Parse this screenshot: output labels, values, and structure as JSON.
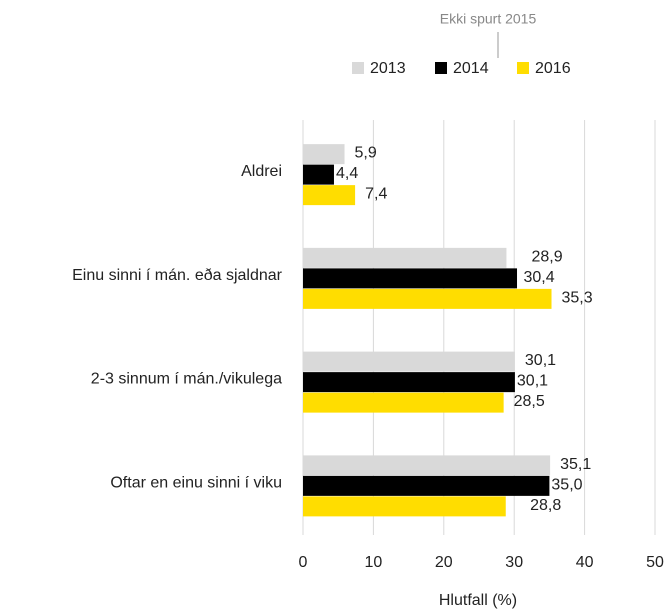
{
  "chart_data": {
    "type": "barh",
    "annotation": "Ekki spurt 2015",
    "xlabel": "Hlutfall (%)",
    "categories": [
      "Aldrei",
      "Einu sinni í mán. eða sjaldnar",
      "2-3 sinnum í mán./vikulega",
      "Oftar en einu sinni í viku"
    ],
    "series": [
      {
        "name": "2013",
        "color": "#d9d9d9",
        "values": [
          5.9,
          28.9,
          30.1,
          35.1
        ],
        "value_labels": [
          "5,9",
          "28,9",
          "30,1",
          "35,1"
        ]
      },
      {
        "name": "2014",
        "color": "#000000",
        "values": [
          4.4,
          30.4,
          30.1,
          35.0
        ],
        "value_labels": [
          "4,4",
          "30,4",
          "30,1",
          "35,0"
        ]
      },
      {
        "name": "2016",
        "color": "#ffdd00",
        "values": [
          7.4,
          35.3,
          28.5,
          28.8
        ],
        "value_labels": [
          "7,4",
          "35,3",
          "28,5",
          "28,8"
        ]
      }
    ],
    "xlim": [
      0,
      50
    ],
    "xticks": [
      0,
      10,
      20,
      30,
      40,
      50
    ],
    "grid": true,
    "legend": "top"
  }
}
